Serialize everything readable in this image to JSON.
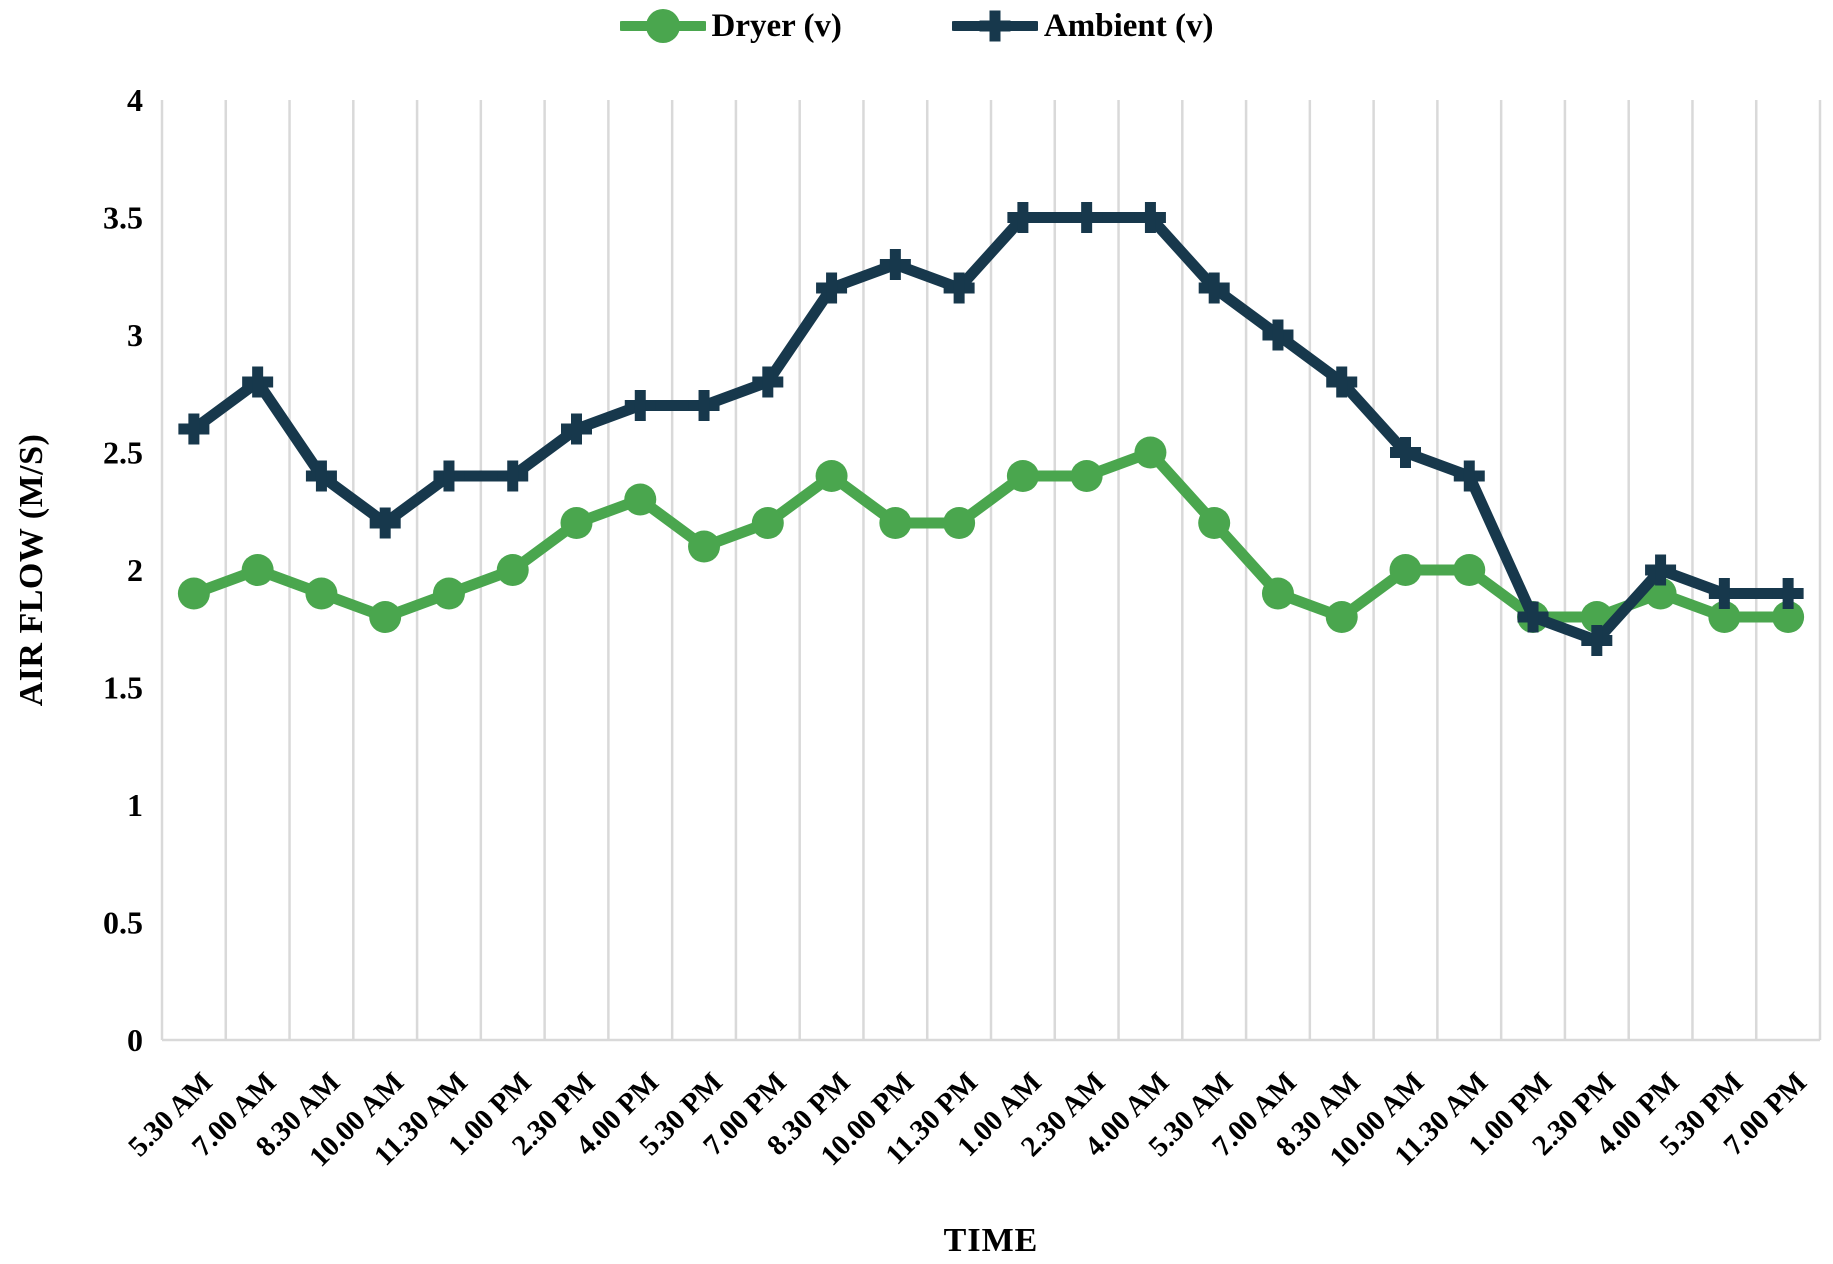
{
  "chart_data": {
    "type": "line",
    "title": "",
    "xlabel": "TIME",
    "ylabel": "AIR FLOW (M/S)",
    "ylim": [
      0,
      4
    ],
    "ytick_step": 0.5,
    "ytick_labels": [
      "0",
      "0.5",
      "1",
      "1.5",
      "2",
      "2.5",
      "3",
      "3.5",
      "4"
    ],
    "grid": "vertical-only",
    "gridline_color": "#d9d9d9",
    "axis_line_color": "#d9d9d9",
    "legend_position": "top",
    "categories": [
      "5.30 AM",
      "7.00 AM",
      "8.30 AM",
      "10.00 AM",
      "11.30 AM",
      "1.00 PM",
      "2.30 PM",
      "4.00 PM",
      "5.30 PM",
      "7.00 PM",
      "8.30 PM",
      "10.00 PM",
      "11.30 PM",
      "1.00 AM",
      "2.30 AM",
      "4.00 AM",
      "5.30 AM",
      "7.00 AM",
      "8.30 AM",
      "10.00 AM",
      "11.30 AM",
      "1.00 PM",
      "2.30 PM",
      "4.00 PM",
      "5.30 PM",
      "7.00 PM"
    ],
    "series": [
      {
        "name": "Dryer (v)",
        "color": "#4aa64e",
        "marker": "circle",
        "values": [
          1.9,
          2.0,
          1.9,
          1.8,
          1.9,
          2.0,
          2.2,
          2.3,
          2.1,
          2.2,
          2.4,
          2.2,
          2.2,
          2.4,
          2.4,
          2.5,
          2.2,
          1.9,
          1.8,
          2.0,
          2.0,
          1.8,
          1.8,
          1.9,
          1.8,
          1.8
        ]
      },
      {
        "name": "Ambient (v)",
        "color": "#17384c",
        "marker": "plus",
        "values": [
          2.6,
          2.8,
          2.4,
          2.2,
          2.4,
          2.4,
          2.6,
          2.7,
          2.7,
          2.8,
          3.2,
          3.3,
          3.2,
          3.5,
          3.5,
          3.5,
          3.2,
          3.0,
          2.8,
          2.5,
          2.4,
          1.8,
          1.7,
          2.0,
          1.9,
          1.9
        ]
      }
    ]
  }
}
